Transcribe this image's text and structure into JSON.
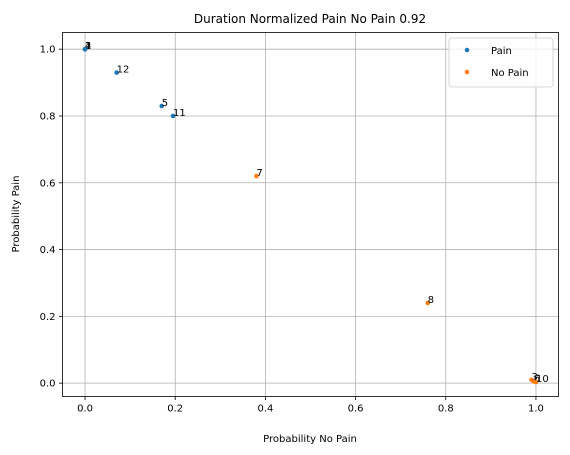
{
  "chart_data": {
    "type": "scatter",
    "title": "Duration Normalized Pain No Pain 0.92",
    "xlabel": "Probability No Pain",
    "ylabel": "Probability Pain",
    "xlim": [
      -0.05,
      1.05
    ],
    "ylim": [
      -0.04,
      1.05
    ],
    "xticks": [
      "0.0",
      "0.2",
      "0.4",
      "0.6",
      "0.8",
      "1.0"
    ],
    "yticks": [
      "0.0",
      "0.2",
      "0.4",
      "0.6",
      "0.8",
      "1.0"
    ],
    "grid": true,
    "legend_position": "top-right",
    "series": [
      {
        "name": "Pain",
        "color": "#1f77b4",
        "points": [
          {
            "label": "1",
            "x": 0.0,
            "y": 1.0
          },
          {
            "label": "2",
            "x": 0.0,
            "y": 1.0
          },
          {
            "label": "4",
            "x": 0.0,
            "y": 1.0
          },
          {
            "label": "12",
            "x": 0.07,
            "y": 0.93
          },
          {
            "label": "5",
            "x": 0.17,
            "y": 0.83
          },
          {
            "label": "11",
            "x": 0.195,
            "y": 0.8
          }
        ]
      },
      {
        "name": "No Pain",
        "color": "#ff7f0e",
        "points": [
          {
            "label": "7",
            "x": 0.38,
            "y": 0.62
          },
          {
            "label": "8",
            "x": 0.76,
            "y": 0.24
          },
          {
            "label": "3",
            "x": 0.99,
            "y": 0.01
          },
          {
            "label": "6",
            "x": 0.995,
            "y": 0.005
          },
          {
            "label": "10",
            "x": 1.0,
            "y": 0.003
          }
        ]
      }
    ]
  }
}
